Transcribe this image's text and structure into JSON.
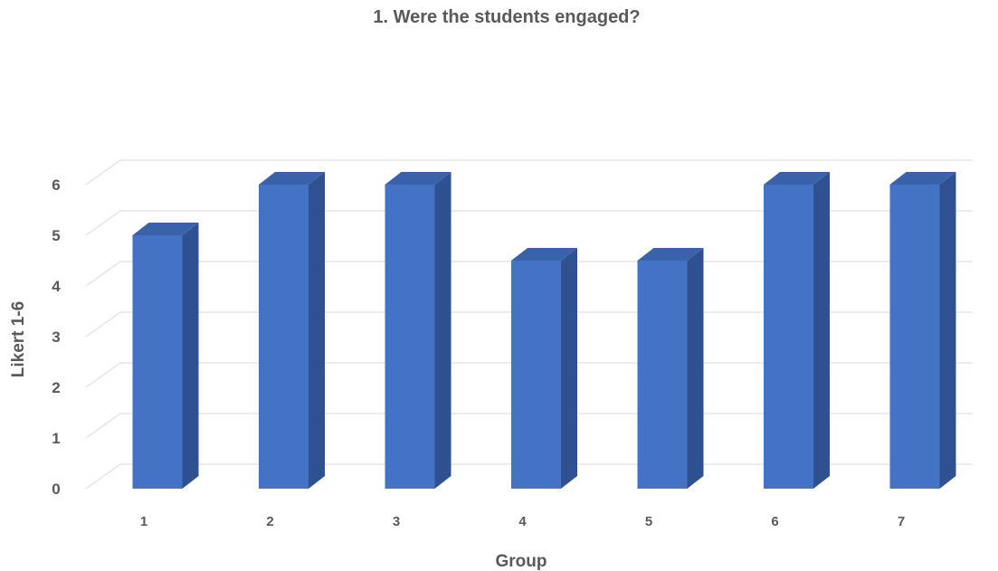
{
  "chart_data": {
    "type": "bar",
    "title": "1. Were the students engaged?",
    "xlabel": "Group",
    "ylabel": "Likert 1-6",
    "categories": [
      "1",
      "2",
      "3",
      "4",
      "5",
      "6",
      "7"
    ],
    "values": [
      5,
      6,
      6,
      4.5,
      4.5,
      6,
      6
    ],
    "ylim": [
      0,
      6
    ],
    "yticks": [
      "0",
      "1",
      "2",
      "3",
      "4",
      "5",
      "6"
    ],
    "grid": true,
    "legend": "none",
    "style": "3d-column",
    "colors": {
      "front": "#4472C4",
      "side": "#2F5191",
      "top": "#3A62AB",
      "grid": "#E6E6E6",
      "text": "#595959"
    }
  }
}
